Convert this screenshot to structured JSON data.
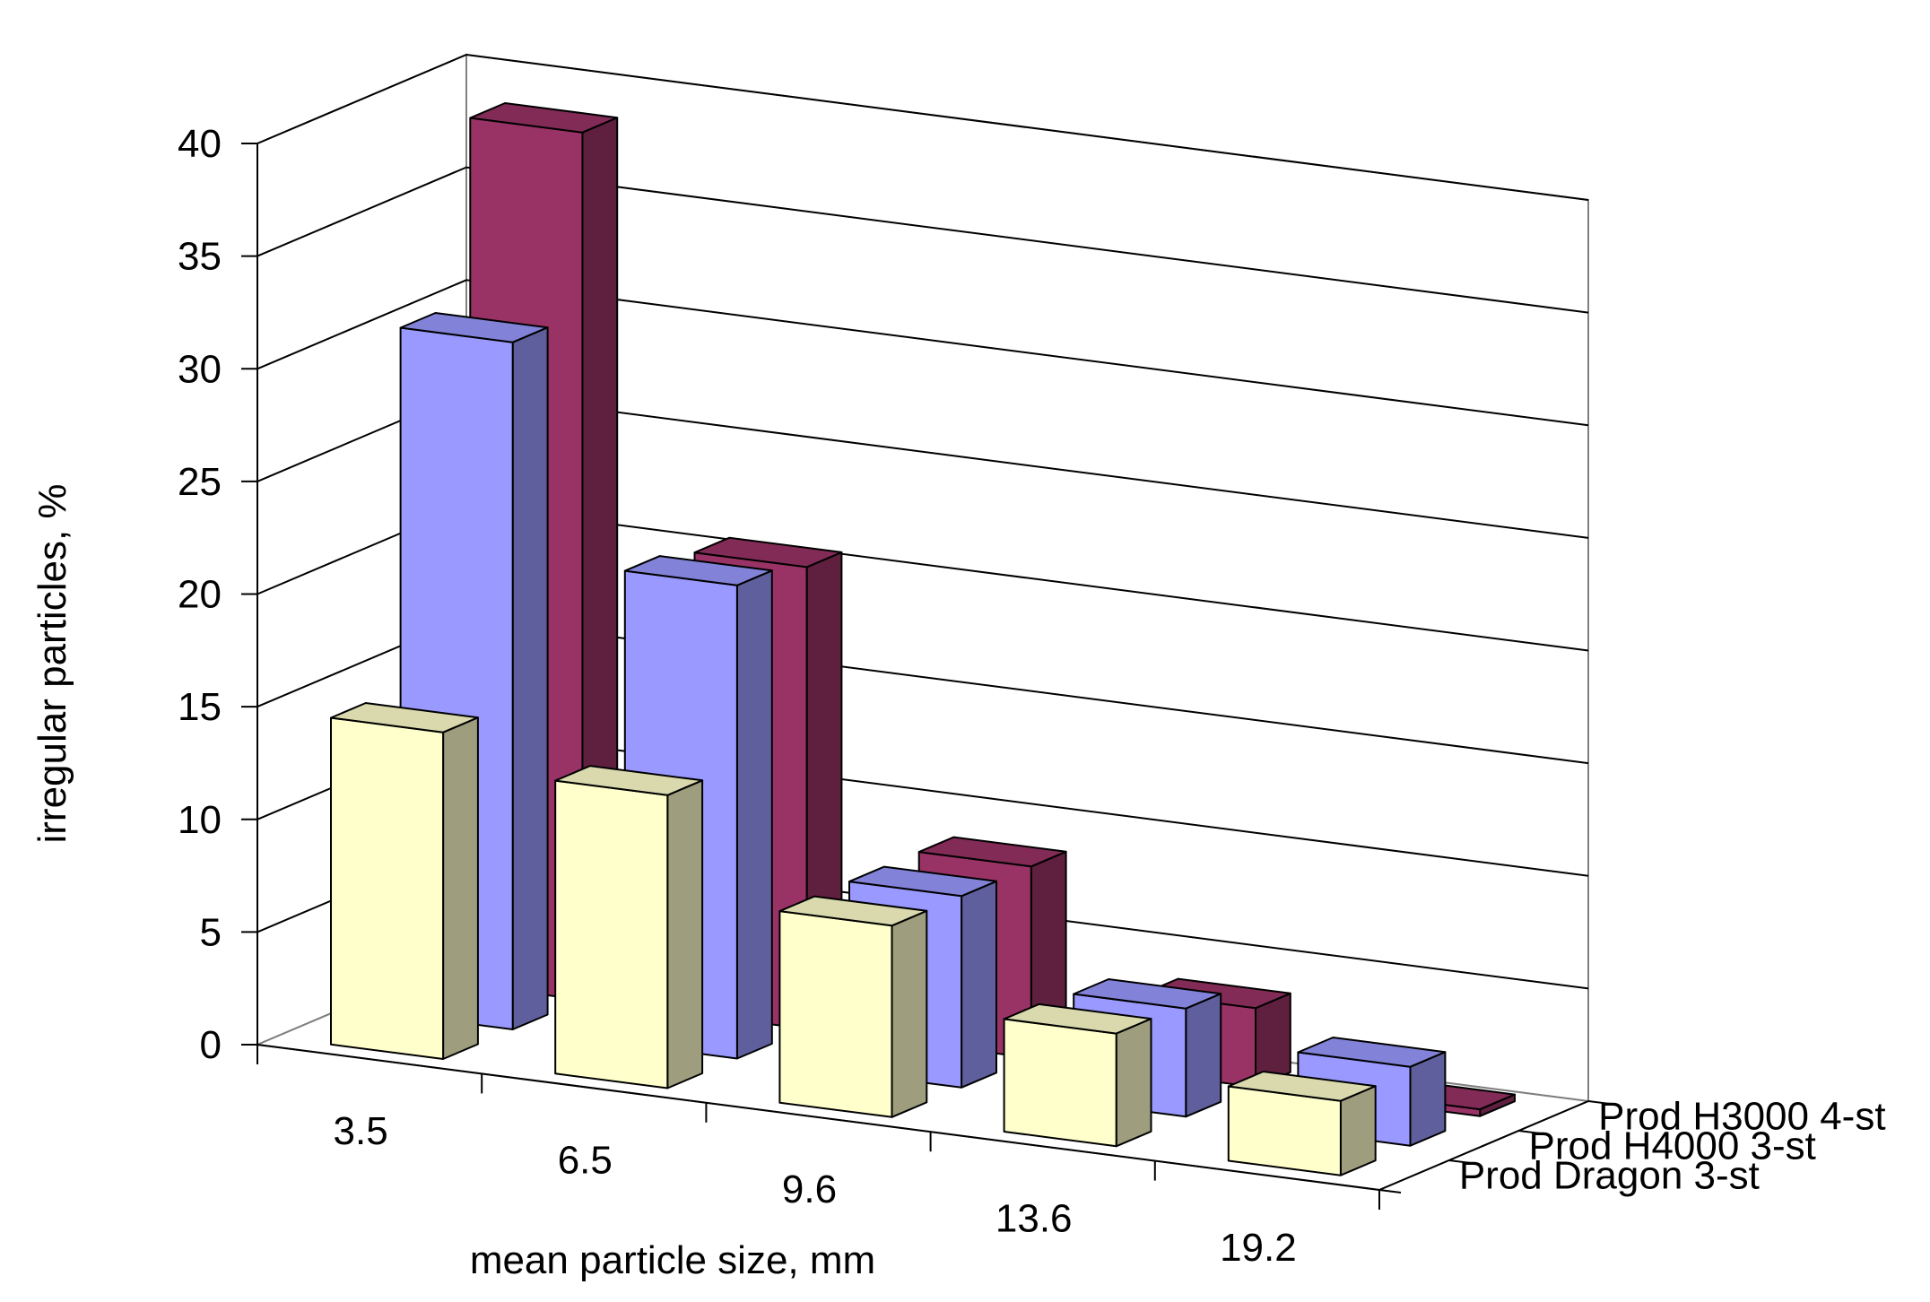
{
  "chart_data": {
    "type": "bar",
    "style": "3d-clustered-depth",
    "title": "",
    "xlabel": "mean particle size, mm",
    "ylabel": "irregular particles, %",
    "ylim": [
      0,
      40
    ],
    "yticks": [
      0,
      5,
      10,
      15,
      20,
      25,
      30,
      35,
      40
    ],
    "categories": [
      "3.5",
      "6.5",
      "9.6",
      "13.6",
      "19.2"
    ],
    "series": [
      {
        "name": "Prod Dragon 3-st",
        "values": [
          14.5,
          13.0,
          8.5,
          5.0,
          3.3
        ],
        "color": "#ffffcc"
      },
      {
        "name": "Prod H4000 3-st",
        "values": [
          30.5,
          21.0,
          8.5,
          4.8,
          3.5
        ],
        "color": "#9999ff"
      },
      {
        "name": "Prod H3000 4-st",
        "values": [
          38.5,
          20.5,
          8.5,
          3.5,
          0.3
        ],
        "color": "#993366"
      }
    ],
    "legend_position": "right"
  }
}
